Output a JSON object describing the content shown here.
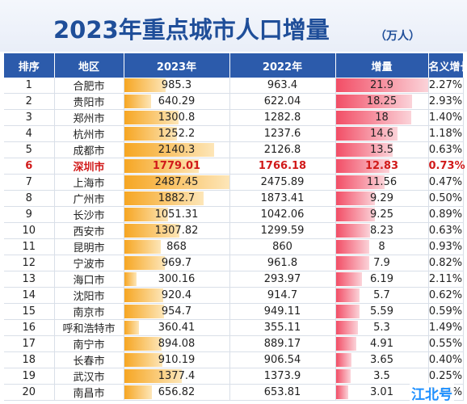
{
  "title": "2023年重点城市人口增量",
  "unit": "（万人）",
  "headers": [
    "排序",
    "地区",
    "2023年",
    "2022年",
    "增量",
    "名义增长率"
  ],
  "rows": [
    {
      "rank": "1",
      "city": "合肥市",
      "y2023": "985.3",
      "y2022": "963.4",
      "inc": "21.9",
      "rate": "2.27%"
    },
    {
      "rank": "2",
      "city": "贵阳市",
      "y2023": "640.29",
      "y2022": "622.04",
      "inc": "18.25",
      "rate": "2.93%"
    },
    {
      "rank": "3",
      "city": "郑州市",
      "y2023": "1300.8",
      "y2022": "1282.8",
      "inc": "18",
      "rate": "1.40%"
    },
    {
      "rank": "4",
      "city": "杭州市",
      "y2023": "1252.2",
      "y2022": "1237.6",
      "inc": "14.6",
      "rate": "1.18%"
    },
    {
      "rank": "5",
      "city": "成都市",
      "y2023": "2140.3",
      "y2022": "2126.8",
      "inc": "13.5",
      "rate": "0.63%"
    },
    {
      "rank": "6",
      "city": "深圳市",
      "y2023": "1779.01",
      "y2022": "1766.18",
      "inc": "12.83",
      "rate": "0.73%",
      "highlight": true
    },
    {
      "rank": "7",
      "city": "上海市",
      "y2023": "2487.45",
      "y2022": "2475.89",
      "inc": "11.56",
      "rate": "0.47%"
    },
    {
      "rank": "8",
      "city": "广州市",
      "y2023": "1882.7",
      "y2022": "1873.41",
      "inc": "9.29",
      "rate": "0.50%"
    },
    {
      "rank": "9",
      "city": "长沙市",
      "y2023": "1051.31",
      "y2022": "1042.06",
      "inc": "9.25",
      "rate": "0.89%"
    },
    {
      "rank": "10",
      "city": "西安市",
      "y2023": "1307.82",
      "y2022": "1299.59",
      "inc": "8.23",
      "rate": "0.63%"
    },
    {
      "rank": "11",
      "city": "昆明市",
      "y2023": "868",
      "y2022": "860",
      "inc": "8",
      "rate": "0.93%"
    },
    {
      "rank": "12",
      "city": "宁波市",
      "y2023": "969.7",
      "y2022": "961.8",
      "inc": "7.9",
      "rate": "0.82%"
    },
    {
      "rank": "13",
      "city": "海口市",
      "y2023": "300.16",
      "y2022": "293.97",
      "inc": "6.19",
      "rate": "2.11%"
    },
    {
      "rank": "14",
      "city": "沈阳市",
      "y2023": "920.4",
      "y2022": "914.7",
      "inc": "5.7",
      "rate": "0.62%"
    },
    {
      "rank": "15",
      "city": "南京市",
      "y2023": "954.7",
      "y2022": "949.11",
      "inc": "5.59",
      "rate": "0.59%"
    },
    {
      "rank": "16",
      "city": "呼和浩特市",
      "y2023": "360.41",
      "y2022": "355.11",
      "inc": "5.3",
      "rate": "1.49%"
    },
    {
      "rank": "17",
      "city": "南宁市",
      "y2023": "894.08",
      "y2022": "889.17",
      "inc": "4.91",
      "rate": "0.55%"
    },
    {
      "rank": "18",
      "city": "长春市",
      "y2023": "910.19",
      "y2022": "906.54",
      "inc": "3.65",
      "rate": "0.40%"
    },
    {
      "rank": "19",
      "city": "武汉市",
      "y2023": "1377.4",
      "y2022": "1373.9",
      "inc": "3.5",
      "rate": "0.25%"
    },
    {
      "rank": "20",
      "city": "南昌市",
      "y2023": "656.82",
      "y2022": "653.81",
      "inc": "3.01",
      "rate": "0.46%"
    }
  ],
  "bar_scale": {
    "y2023_max": 2487.45,
    "inc_max": 21.9
  },
  "colors": {
    "title": "#1f4e99",
    "header_bg": "#2c5bab",
    "highlight": "#d11a1a",
    "bar_2023": "#f6a623",
    "bar_inc": "#f24e66"
  },
  "watermark": "江北号"
}
